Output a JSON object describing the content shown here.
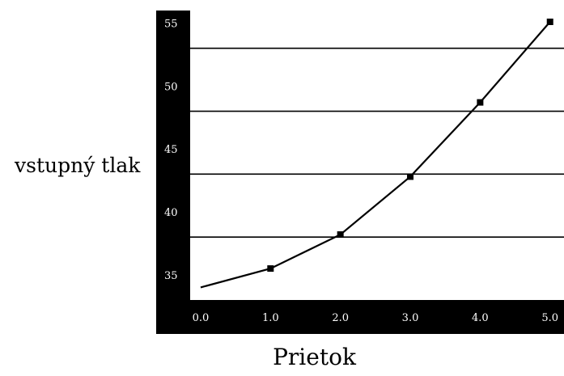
{
  "chart_data": {
    "type": "line",
    "title": "",
    "xlabel": "Prietok",
    "ylabel": "vstupný tlak",
    "x_ticks": [
      "0.0",
      "1.0",
      "2.0",
      "3.0",
      "4.0",
      "5.0"
    ],
    "y_ticks": [
      "35",
      "40",
      "45",
      "50",
      "55"
    ],
    "xlim": [
      -0.15,
      5.2
    ],
    "ylim": [
      33,
      56
    ],
    "grid": "horizontal lines at y = 38, 43, 48, 53",
    "grid_lines": [
      38,
      43,
      48,
      53
    ],
    "series": [
      {
        "color": "#000000",
        "marker": "square",
        "points": [
          {
            "x": 0.0,
            "y": 34.0
          },
          {
            "x": 1.0,
            "y": 35.5
          },
          {
            "x": 2.0,
            "y": 38.2
          },
          {
            "x": 3.0,
            "y": 42.8
          },
          {
            "x": 4.0,
            "y": 48.7
          },
          {
            "x": 5.0,
            "y": 55.1
          }
        ]
      }
    ]
  },
  "colors": {
    "frame": "#000000",
    "plot_background": "#ffffff",
    "tick_text": "#ffffff",
    "line": "#000000"
  }
}
